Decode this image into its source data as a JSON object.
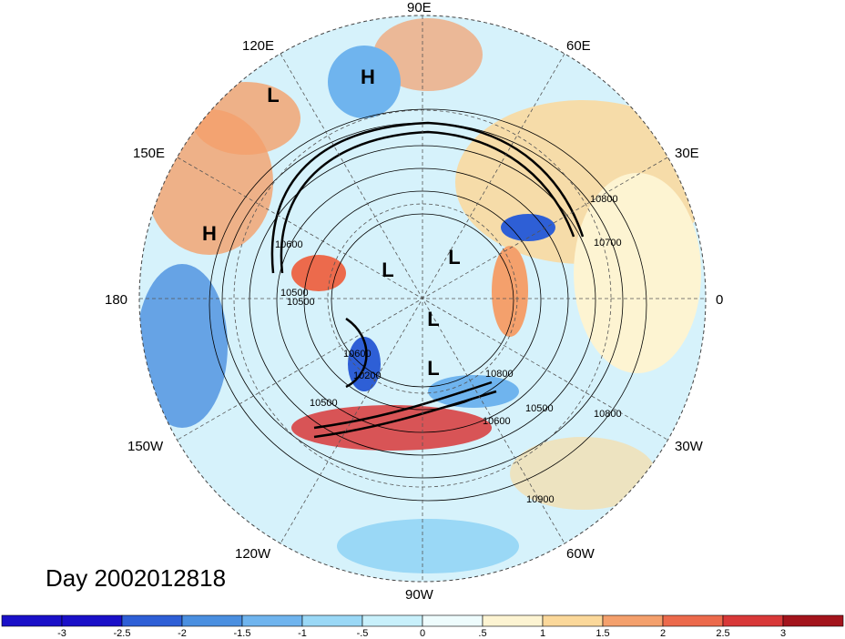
{
  "title": "Day 2002012818",
  "longitude_labels": [
    {
      "key": "90E",
      "text": "90E"
    },
    {
      "key": "60E",
      "text": "60E"
    },
    {
      "key": "30E",
      "text": "30E"
    },
    {
      "key": "0",
      "text": "0"
    },
    {
      "key": "30W",
      "text": "30W"
    },
    {
      "key": "60W",
      "text": "60W"
    },
    {
      "key": "90W",
      "text": "90W"
    },
    {
      "key": "120W",
      "text": "120W"
    },
    {
      "key": "150W",
      "text": "150W"
    },
    {
      "key": "180",
      "text": "180"
    },
    {
      "key": "150E",
      "text": "150E"
    },
    {
      "key": "120E",
      "text": "120E"
    }
  ],
  "pressure_centers": [
    "H",
    "L",
    "H",
    "L",
    "L",
    "L",
    "L"
  ],
  "contour_labels": [
    "10800",
    "10700",
    "10600",
    "10500",
    "10800",
    "10600",
    "10500",
    "10900",
    "10600",
    "10500",
    "10500",
    "10200",
    "10800"
  ],
  "colorbar": {
    "ticks": [
      "-3",
      "-2.5",
      "-2",
      "-1.5",
      "-1",
      "-.5",
      "0",
      ".5",
      "1",
      "1.5",
      "2",
      "2.5",
      "3"
    ],
    "colors": [
      "#1a10c8",
      "#2e5fd6",
      "#4a8fe0",
      "#6fb4ee",
      "#9ad8f6",
      "#c8f0fb",
      "#eefcfd",
      "#fdf4d2",
      "#fbd89a",
      "#f4a06c",
      "#ec6a4c",
      "#d83838",
      "#a3141c"
    ]
  }
}
